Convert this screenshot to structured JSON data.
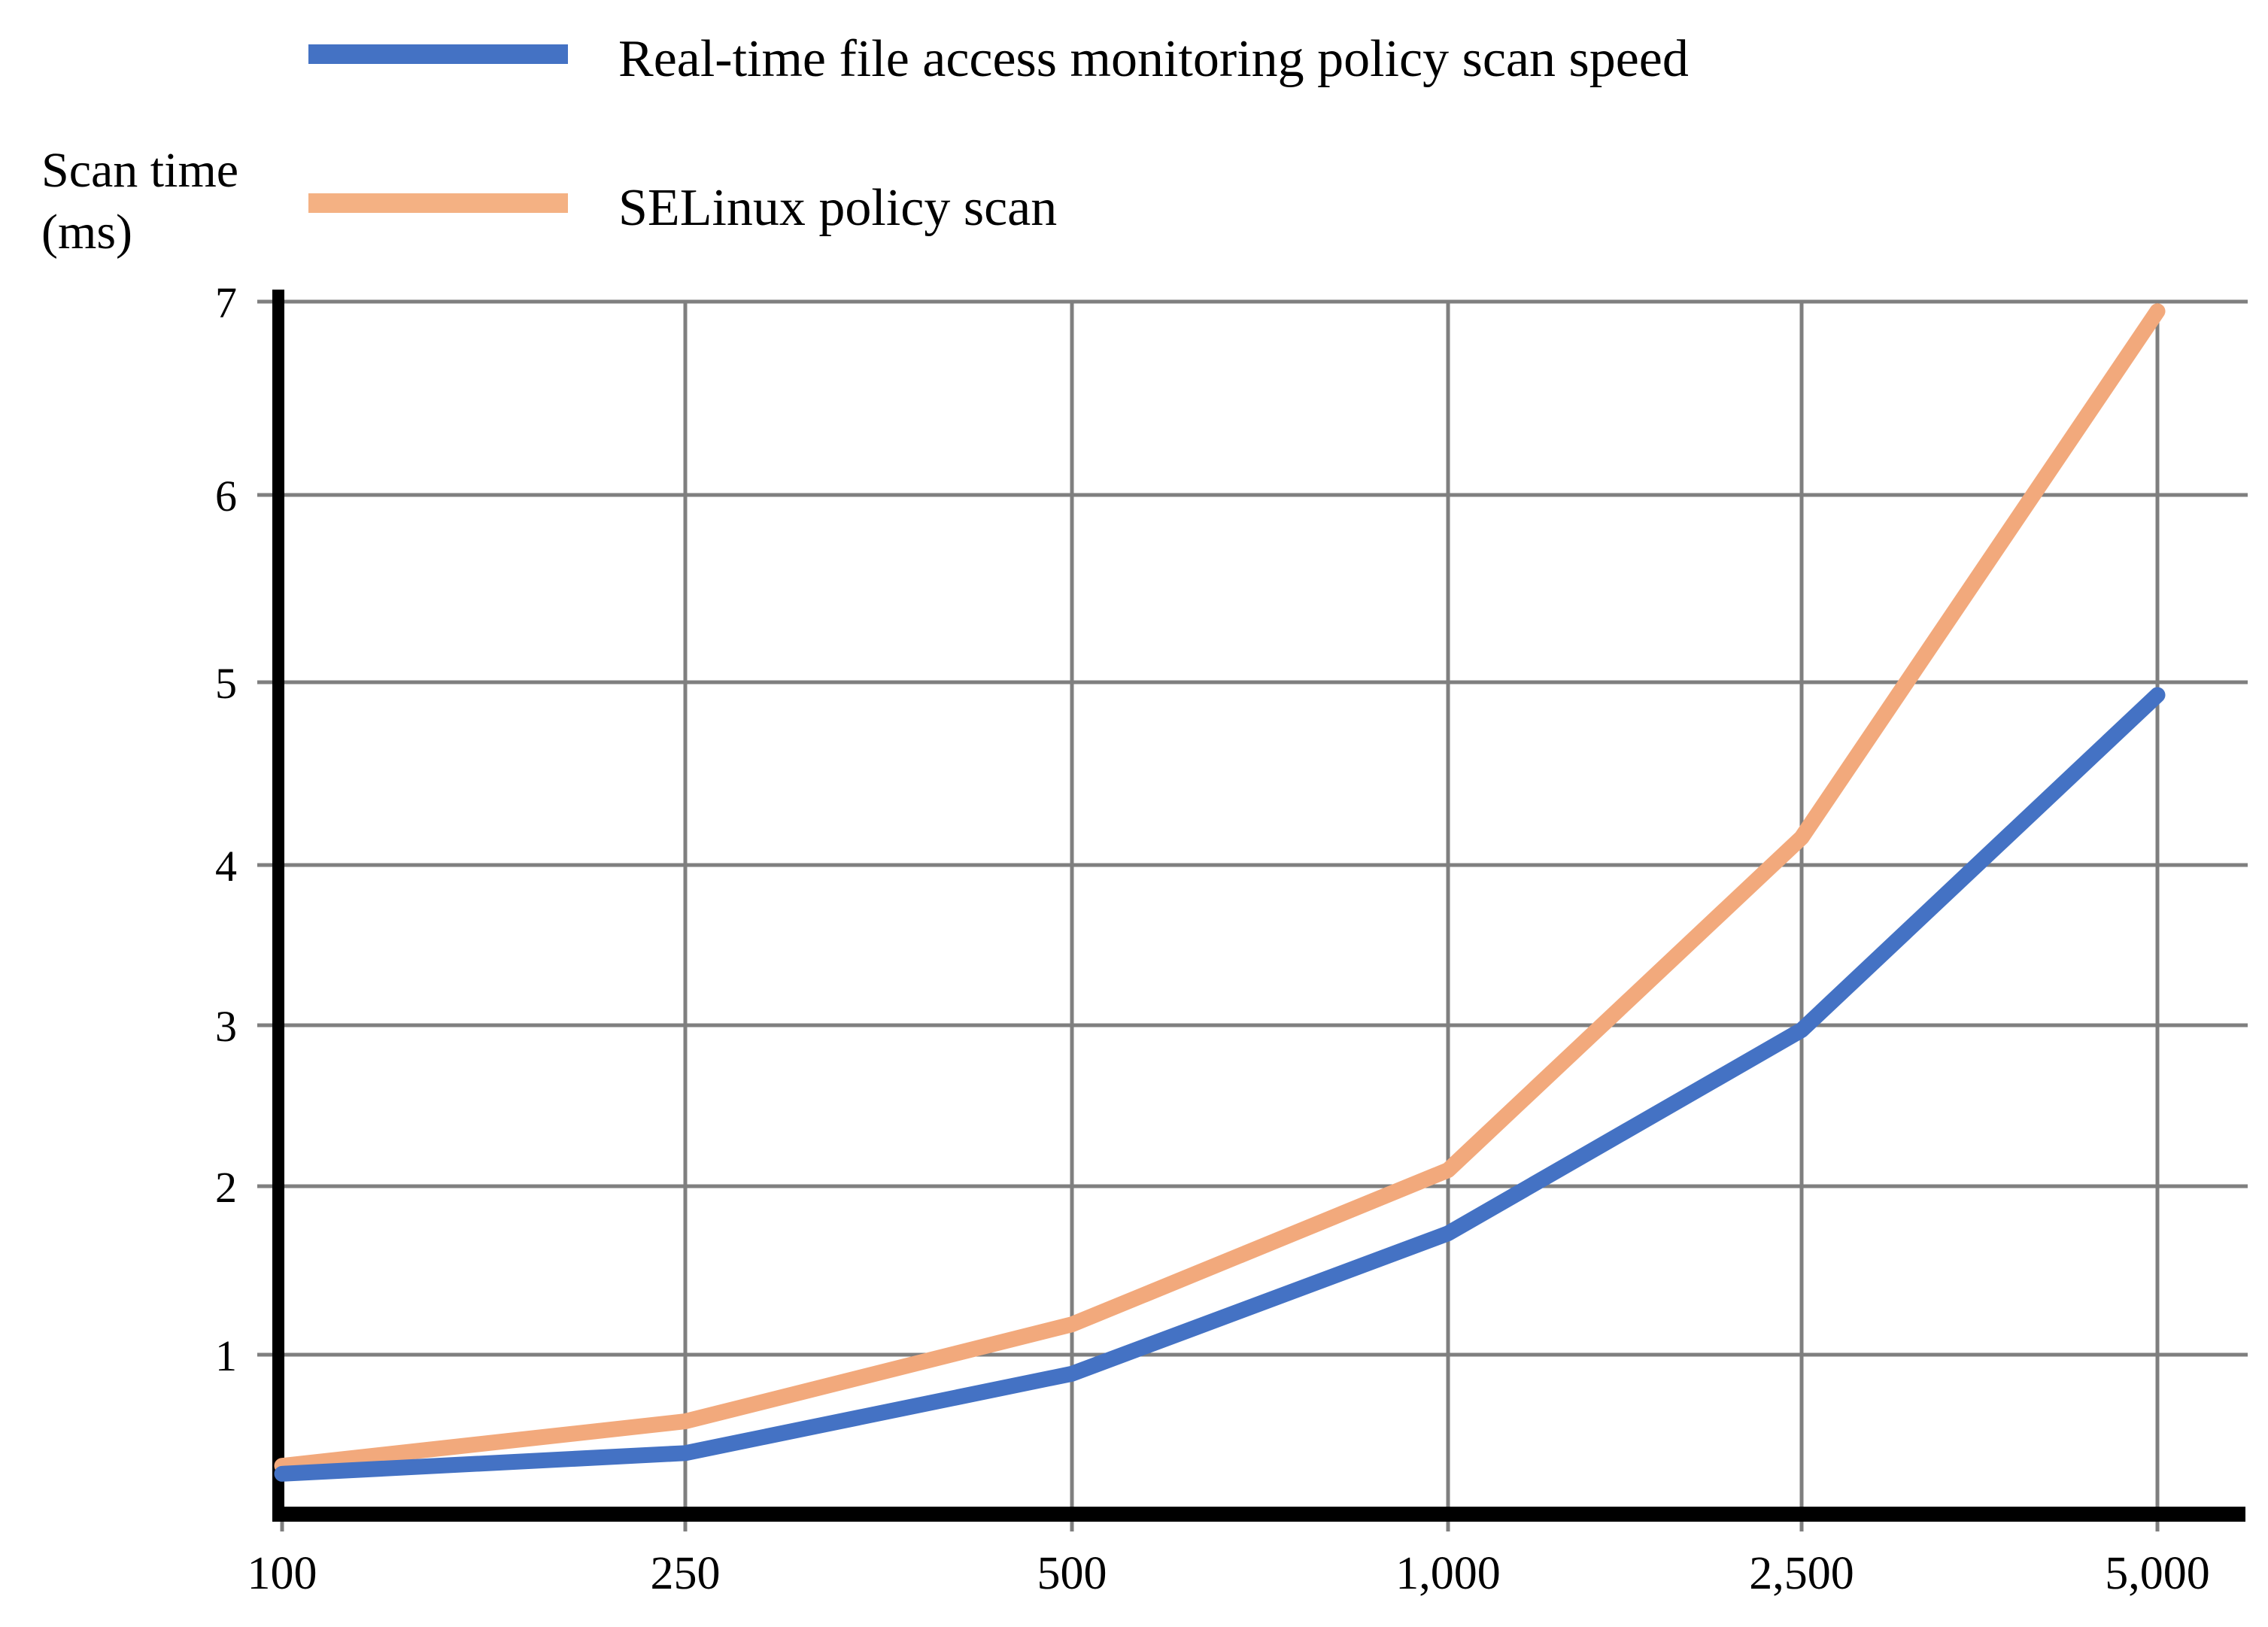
{
  "chart_data": {
    "type": "line",
    "title": "",
    "xlabel": "",
    "ylabel_line1": "Scan time",
    "ylabel_line2": "(ms)",
    "categories": [
      "100",
      "250",
      "500",
      "1,000",
      "2,500",
      "5,000"
    ],
    "series": [
      {
        "name": "Real-time file access monitoring policy scan speed",
        "color": "#4472C4",
        "legend_color": "#4472C4",
        "values": [
          0.25,
          0.38,
          0.88,
          1.72,
          2.97,
          4.93
        ]
      },
      {
        "name": "SELinux policy scan",
        "color": "#F2A97C",
        "legend_color": "#F4B183",
        "values": [
          0.3,
          0.58,
          1.18,
          2.1,
          4.15,
          6.95
        ]
      }
    ],
    "yticks": [
      1,
      2,
      3,
      4,
      5,
      6,
      7
    ],
    "ylim": [
      0,
      7.2
    ],
    "grid": true,
    "legend_position": "top-left",
    "grid_color": "#7F7F7F",
    "axis_color": "#000000",
    "background_color": "#FFFFFF"
  }
}
